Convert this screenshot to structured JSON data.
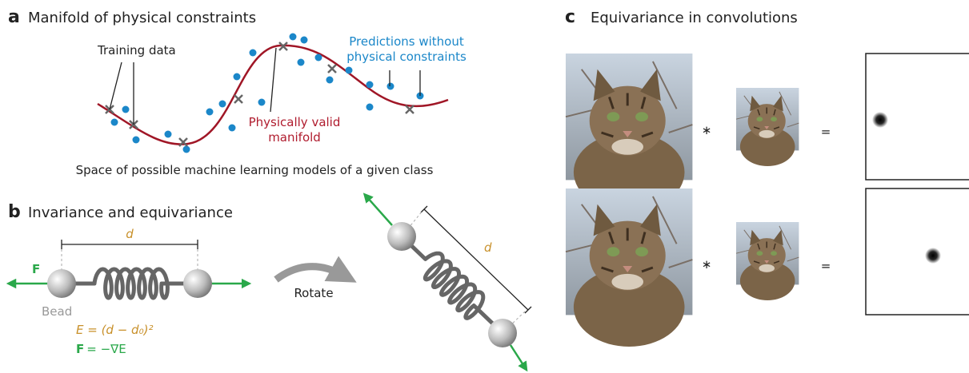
{
  "panel_a": {
    "letter": "a",
    "title": "Manifold of physical constraints",
    "training_label": "Training data",
    "predictions_label": [
      "Predictions without",
      "physical constraints"
    ],
    "manifold_label": [
      "Physically valid",
      "manifold"
    ],
    "caption": "Space of possible machine learning models of a given class"
  },
  "panel_b": {
    "letter": "b",
    "title": "Invariance and equivariance",
    "distance_symbol": "d",
    "force_symbol": "F",
    "bead_label": "Bead",
    "energy_equation": "E = (d − d₀)²",
    "force_equation": "= −∇E",
    "rotate_label": "Rotate"
  },
  "panel_c": {
    "letter": "c",
    "title": "Equivariance in convolutions",
    "rows": [
      {
        "convolve": "∗",
        "equals": "="
      },
      {
        "convolve": "∗",
        "equals": "="
      }
    ]
  }
}
